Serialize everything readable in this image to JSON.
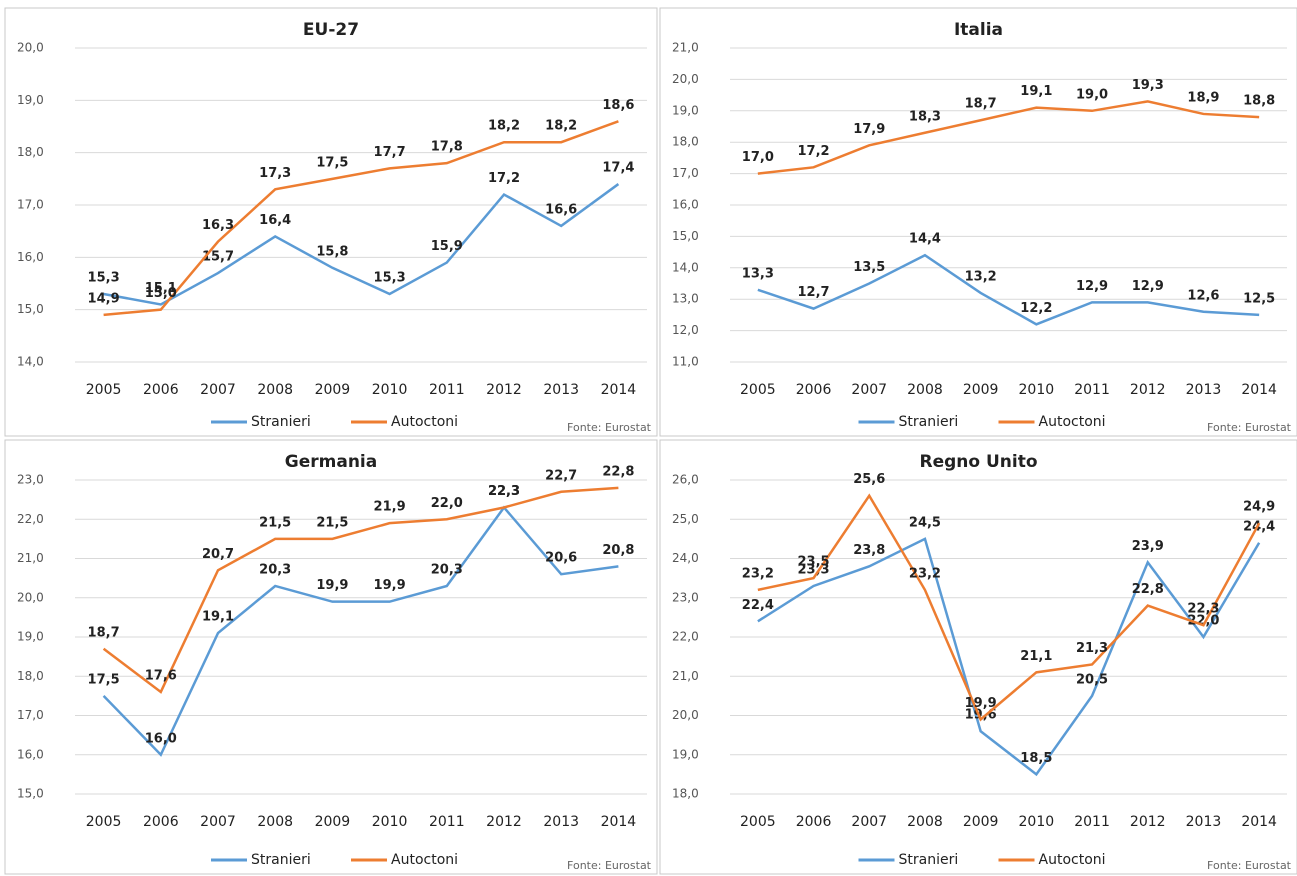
{
  "chart_data": [
    {
      "type": "line",
      "title": "EU-27",
      "note": "Fonte: Eurostat",
      "grid": true,
      "legend": "bottom",
      "categories": [
        "2005",
        "2006",
        "2007",
        "2008",
        "2009",
        "2010",
        "2011",
        "2012",
        "2013",
        "2014"
      ],
      "series": [
        {
          "name": "Stranieri",
          "color": "#5b9bd5",
          "values": [
            15.3,
            15.1,
            15.7,
            16.4,
            15.8,
            15.3,
            15.9,
            17.2,
            16.6,
            17.4
          ],
          "value_labels": [
            "15,3",
            "15,1",
            "15,7",
            "16,4",
            "15,8",
            "15,3",
            "15,9",
            "17,2",
            "16,6",
            "17,4"
          ]
        },
        {
          "name": "Autoctoni",
          "color": "#ed7d31",
          "values": [
            14.9,
            15.0,
            16.3,
            17.3,
            17.5,
            17.7,
            17.8,
            18.2,
            18.2,
            18.6
          ],
          "value_labels": [
            "14,9",
            "15,0",
            "16,3",
            "17,3",
            "17,5",
            "17,7",
            "17,8",
            "18,2",
            "18,2",
            "18,6"
          ]
        }
      ],
      "ylim": [
        14,
        20
      ],
      "yticks": [
        {
          "value": 14,
          "label": "14,0"
        },
        {
          "value": 15,
          "label": "15,0"
        },
        {
          "value": 16,
          "label": "16,0"
        },
        {
          "value": 17,
          "label": "17,0"
        },
        {
          "value": 18,
          "label": "18,0"
        },
        {
          "value": 19,
          "label": "19,0"
        },
        {
          "value": 20,
          "label": "20,0"
        }
      ]
    },
    {
      "type": "line",
      "title": "Italia",
      "note": "Fonte: Eurostat",
      "grid": true,
      "legend": "bottom",
      "categories": [
        "2005",
        "2006",
        "2007",
        "2008",
        "2009",
        "2010",
        "2011",
        "2012",
        "2013",
        "2014"
      ],
      "series": [
        {
          "name": "Stranieri",
          "color": "#5b9bd5",
          "values": [
            13.3,
            12.7,
            13.5,
            14.4,
            13.2,
            12.2,
            12.9,
            12.9,
            12.6,
            12.5
          ],
          "value_labels": [
            "13,3",
            "12,7",
            "13,5",
            "14,4",
            "13,2",
            "12,2",
            "12,9",
            "12,9",
            "12,6",
            "12,5"
          ]
        },
        {
          "name": "Autoctoni",
          "color": "#ed7d31",
          "values": [
            17.0,
            17.2,
            17.9,
            18.3,
            18.7,
            19.1,
            19.0,
            19.3,
            18.9,
            18.8
          ],
          "value_labels": [
            "17,0",
            "17,2",
            "17,9",
            "18,3",
            "18,7",
            "19,1",
            "19,0",
            "19,3",
            "18,9",
            "18,8"
          ]
        }
      ],
      "ylim": [
        11,
        21
      ],
      "yticks": [
        {
          "value": 11,
          "label": "11,0"
        },
        {
          "value": 12,
          "label": "12,0"
        },
        {
          "value": 13,
          "label": "13,0"
        },
        {
          "value": 14,
          "label": "14,0"
        },
        {
          "value": 15,
          "label": "15,0"
        },
        {
          "value": 16,
          "label": "16,0"
        },
        {
          "value": 17,
          "label": "17,0"
        },
        {
          "value": 18,
          "label": "18,0"
        },
        {
          "value": 19,
          "label": "19,0"
        },
        {
          "value": 20,
          "label": "20,0"
        },
        {
          "value": 21,
          "label": "21,0"
        }
      ]
    },
    {
      "type": "line",
      "title": "Germania",
      "note": "Fonte: Eurostat",
      "grid": true,
      "legend": "bottom",
      "categories": [
        "2005",
        "2006",
        "2007",
        "2008",
        "2009",
        "2010",
        "2011",
        "2012",
        "2013",
        "2014"
      ],
      "series": [
        {
          "name": "Stranieri",
          "color": "#5b9bd5",
          "values": [
            17.5,
            16.0,
            19.1,
            20.3,
            19.9,
            19.9,
            20.3,
            22.3,
            20.6,
            20.8
          ],
          "value_labels": [
            "17,5",
            "16,0",
            "19,1",
            "20,3",
            "19,9",
            "19,9",
            "20,3",
            "22,3",
            "20,6",
            "20,8"
          ]
        },
        {
          "name": "Autoctoni",
          "color": "#ed7d31",
          "values": [
            18.7,
            17.6,
            20.7,
            21.5,
            21.5,
            21.9,
            22.0,
            22.3,
            22.7,
            22.8
          ],
          "value_labels": [
            "18,7",
            "17,6",
            "20,7",
            "21,5",
            "21,5",
            "21,9",
            "22,0",
            "22,3",
            "22,7",
            "22,8"
          ]
        }
      ],
      "ylim": [
        15,
        23
      ],
      "yticks": [
        {
          "value": 15,
          "label": "15,0"
        },
        {
          "value": 16,
          "label": "16,0"
        },
        {
          "value": 17,
          "label": "17,0"
        },
        {
          "value": 18,
          "label": "18,0"
        },
        {
          "value": 19,
          "label": "19,0"
        },
        {
          "value": 20,
          "label": "20,0"
        },
        {
          "value": 21,
          "label": "21,0"
        },
        {
          "value": 22,
          "label": "22,0"
        },
        {
          "value": 23,
          "label": "23,0"
        }
      ]
    },
    {
      "type": "line",
      "title": "Regno Unito",
      "note": "Fonte: Eurostat",
      "grid": true,
      "legend": "bottom",
      "categories": [
        "2005",
        "2006",
        "2007",
        "2008",
        "2009",
        "2010",
        "2011",
        "2012",
        "2013",
        "2014"
      ],
      "series": [
        {
          "name": "Stranieri",
          "color": "#5b9bd5",
          "values": [
            22.4,
            23.3,
            23.8,
            24.5,
            19.6,
            18.5,
            20.5,
            23.9,
            22.0,
            24.4
          ],
          "value_labels": [
            "22,4",
            "23,3",
            "23,8",
            "24,5",
            "19,6",
            "18,5",
            "20,5",
            "23,9",
            "22,0",
            "24,4"
          ]
        },
        {
          "name": "Autoctoni",
          "color": "#ed7d31",
          "values": [
            23.2,
            23.5,
            25.6,
            23.2,
            19.9,
            21.1,
            21.3,
            22.8,
            22.3,
            24.9
          ],
          "value_labels": [
            "23,2",
            "23,5",
            "25,6",
            "23,2",
            "19,9",
            "21,1",
            "21,3",
            "22,8",
            "22,3",
            "24,9"
          ]
        }
      ],
      "ylim": [
        18,
        26
      ],
      "yticks": [
        {
          "value": 18,
          "label": "18,0"
        },
        {
          "value": 19,
          "label": "19,0"
        },
        {
          "value": 20,
          "label": "20,0"
        },
        {
          "value": 21,
          "label": "21,0"
        },
        {
          "value": 22,
          "label": "22,0"
        },
        {
          "value": 23,
          "label": "23,0"
        },
        {
          "value": 24,
          "label": "24,0"
        },
        {
          "value": 25,
          "label": "25,0"
        },
        {
          "value": 26,
          "label": "26,0"
        }
      ]
    }
  ]
}
